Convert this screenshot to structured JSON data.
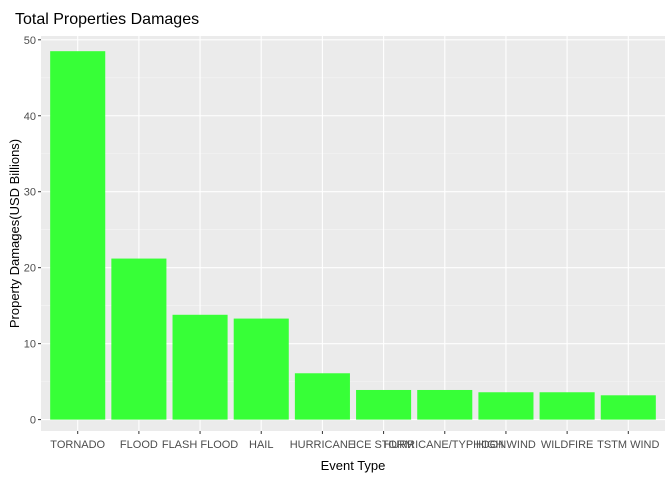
{
  "chart_data": {
    "type": "bar",
    "title": "Total Properties Damages",
    "xlabel": "Event Type",
    "ylabel": "Property Damages(USD Billions)",
    "categories": [
      "TORNADO",
      "FLOOD",
      "FLASH FLOOD",
      "HAIL",
      "HURRICANE",
      "ICE STORM",
      "HURRICANE/TYPHOON",
      "HIGH WIND",
      "WILDFIRE",
      "TSTM WIND"
    ],
    "values": [
      48.5,
      21.2,
      13.8,
      13.3,
      6.1,
      3.9,
      3.9,
      3.6,
      3.6,
      3.2
    ],
    "ylim": [
      -1.5,
      50.5
    ],
    "yticks": [
      0,
      10,
      20,
      30,
      40,
      50
    ],
    "grid": true,
    "colors": {
      "bar": "#33ff33",
      "panel": "#ebebeb",
      "grid_major": "#ffffff",
      "grid_minor": "#f5f5f5",
      "tick_text": "#4d4d4d",
      "title_text": "#000000"
    }
  }
}
